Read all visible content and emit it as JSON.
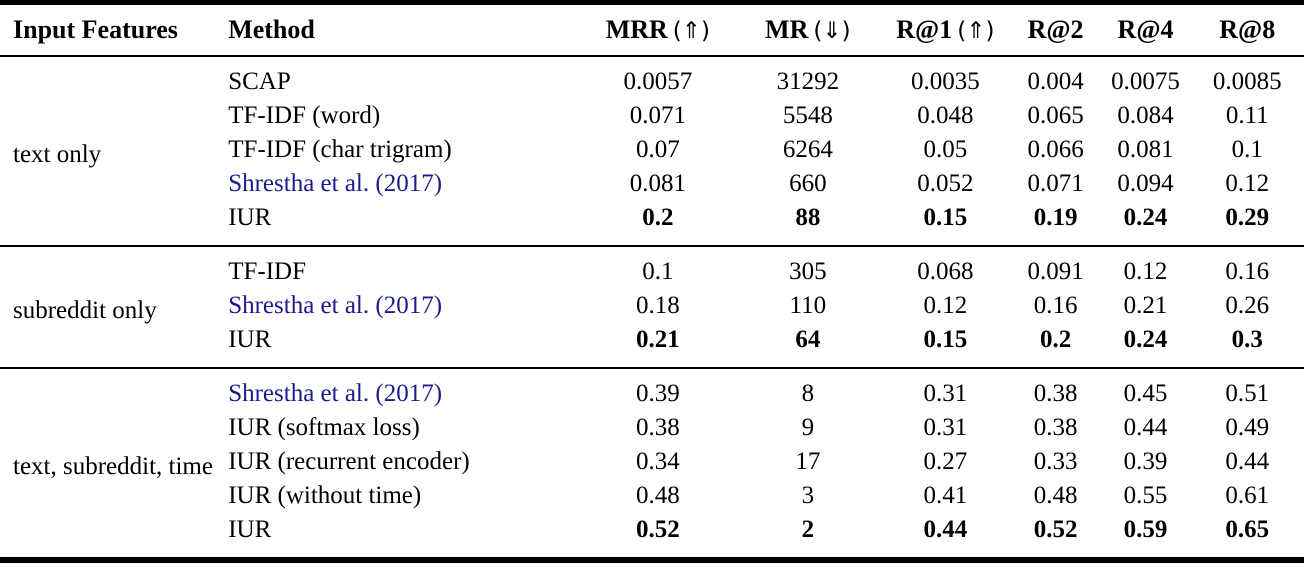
{
  "table": {
    "colors": {
      "text": "#000000",
      "citation_link": "#1b1b8c",
      "rule": "#000000"
    },
    "columns": [
      {
        "label": "Input Features",
        "arrow": "",
        "align": "left",
        "name": "col-input-features"
      },
      {
        "label": "Method",
        "arrow": "",
        "align": "left",
        "name": "col-method"
      },
      {
        "label": "MRR",
        "arrow": "(⇑)",
        "align": "center",
        "name": "col-mrr"
      },
      {
        "label": "MR",
        "arrow": "(⇓)",
        "align": "center",
        "name": "col-mr"
      },
      {
        "label": "R@1",
        "arrow": "(⇑)",
        "align": "center",
        "name": "col-r-at-1"
      },
      {
        "label": "R@2",
        "arrow": "",
        "align": "center",
        "name": "col-r-at-2"
      },
      {
        "label": "R@4",
        "arrow": "",
        "align": "center",
        "name": "col-r-at-4"
      },
      {
        "label": "R@8",
        "arrow": "",
        "align": "center",
        "name": "col-r-at-8"
      }
    ],
    "groups": [
      {
        "input_features": "text only",
        "rows": [
          {
            "method": "SCAP",
            "link": false,
            "bold": false,
            "values": [
              "0.0057",
              "31292",
              "0.0035",
              "0.004",
              "0.0075",
              "0.0085"
            ]
          },
          {
            "method": "TF-IDF (word)",
            "link": false,
            "bold": false,
            "values": [
              "0.071",
              "5548",
              "0.048",
              "0.065",
              "0.084",
              "0.11"
            ]
          },
          {
            "method": "TF-IDF (char trigram)",
            "link": false,
            "bold": false,
            "values": [
              "0.07",
              "6264",
              "0.05",
              "0.066",
              "0.081",
              "0.1"
            ]
          },
          {
            "method": "Shrestha et al. (2017)",
            "link": true,
            "bold": false,
            "values": [
              "0.081",
              "660",
              "0.052",
              "0.071",
              "0.094",
              "0.12"
            ]
          },
          {
            "method": "IUR",
            "link": false,
            "bold": true,
            "values": [
              "0.2",
              "88",
              "0.15",
              "0.19",
              "0.24",
              "0.29"
            ]
          }
        ]
      },
      {
        "input_features": "subreddit only",
        "rows": [
          {
            "method": "TF-IDF",
            "link": false,
            "bold": false,
            "values": [
              "0.1",
              "305",
              "0.068",
              "0.091",
              "0.12",
              "0.16"
            ]
          },
          {
            "method": "Shrestha et al. (2017)",
            "link": true,
            "bold": false,
            "values": [
              "0.18",
              "110",
              "0.12",
              "0.16",
              "0.21",
              "0.26"
            ]
          },
          {
            "method": "IUR",
            "link": false,
            "bold": true,
            "values": [
              "0.21",
              "64",
              "0.15",
              "0.2",
              "0.24",
              "0.3"
            ]
          }
        ]
      },
      {
        "input_features": "text, subreddit, time",
        "rows": [
          {
            "method": "Shrestha et al. (2017)",
            "link": true,
            "bold": false,
            "values": [
              "0.39",
              "8",
              "0.31",
              "0.38",
              "0.45",
              "0.51"
            ]
          },
          {
            "method": "IUR (softmax loss)",
            "link": false,
            "bold": false,
            "values": [
              "0.38",
              "9",
              "0.31",
              "0.38",
              "0.44",
              "0.49"
            ]
          },
          {
            "method": "IUR (recurrent encoder)",
            "link": false,
            "bold": false,
            "values": [
              "0.34",
              "17",
              "0.27",
              "0.33",
              "0.39",
              "0.44"
            ]
          },
          {
            "method": "IUR (without time)",
            "link": false,
            "bold": false,
            "values": [
              "0.48",
              "3",
              "0.41",
              "0.48",
              "0.55",
              "0.61"
            ]
          },
          {
            "method": "IUR",
            "link": false,
            "bold": true,
            "values": [
              "0.52",
              "2",
              "0.44",
              "0.52",
              "0.59",
              "0.65"
            ]
          }
        ]
      }
    ]
  }
}
